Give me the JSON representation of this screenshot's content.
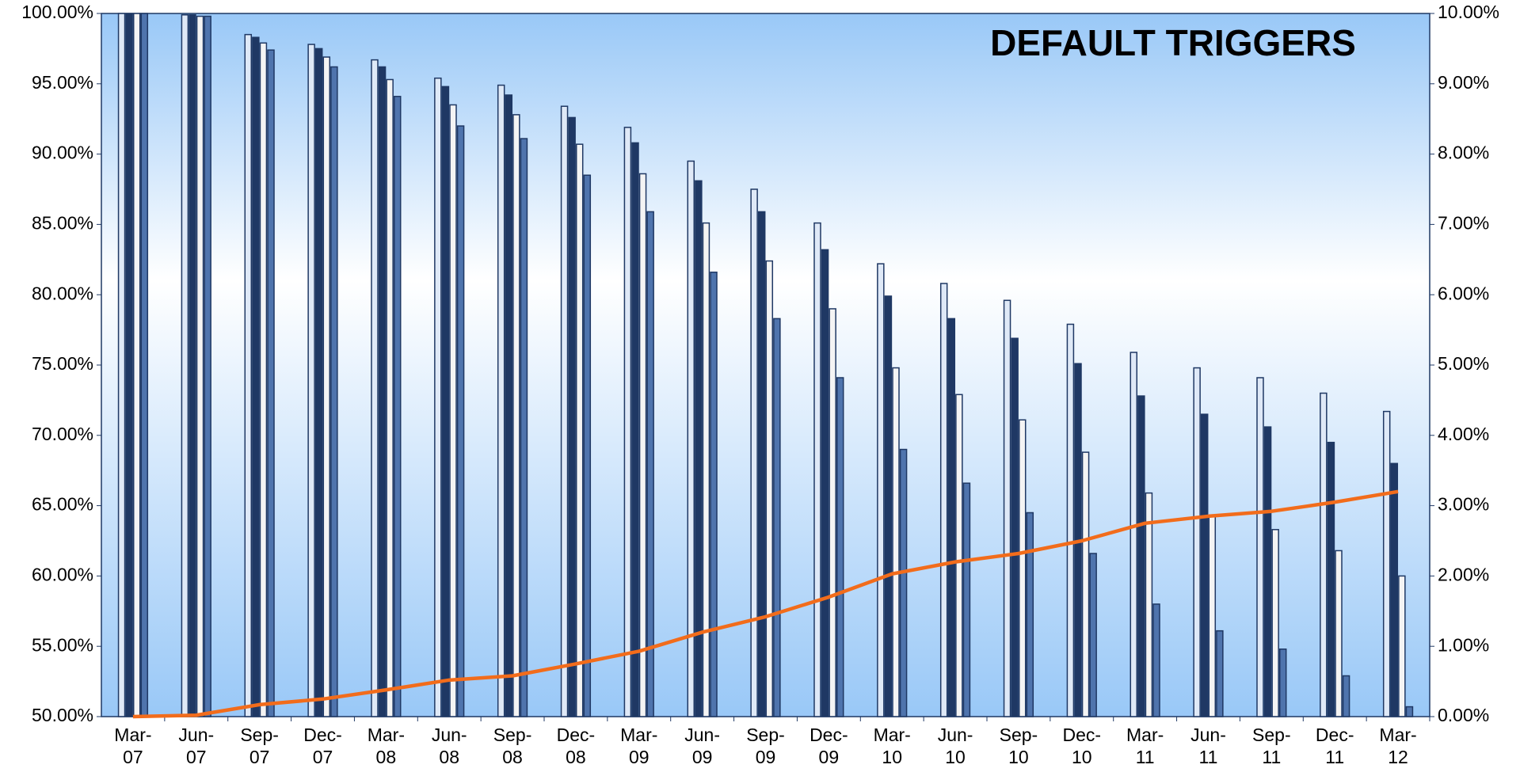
{
  "chart_data": {
    "type": "bar",
    "title": "DEFAULT TRIGGERS",
    "title_color": "#ff6600",
    "categories": [
      "Mar-07",
      "Jun-07",
      "Sep-07",
      "Dec-07",
      "Mar-08",
      "Jun-08",
      "Sep-08",
      "Dec-08",
      "Mar-09",
      "Jun-09",
      "Sep-09",
      "Dec-09",
      "Mar-10",
      "Jun-10",
      "Sep-10",
      "Dec-10",
      "Mar-11",
      "Jun-11",
      "Sep-11",
      "Dec-11",
      "Mar-12"
    ],
    "series": [
      {
        "color": "#dfe9f7",
        "values": [
          100,
          99.9,
          98.5,
          97.8,
          96.7,
          95.4,
          94.9,
          93.4,
          91.9,
          89.5,
          87.5,
          85.1,
          82.2,
          80.8,
          79.6,
          77.9,
          75.9,
          74.8,
          74.1,
          73.0,
          71.7
        ]
      },
      {
        "color": "#1f3864",
        "values": [
          100,
          99.9,
          98.3,
          97.5,
          96.2,
          94.8,
          94.2,
          92.6,
          90.8,
          88.1,
          85.9,
          83.2,
          79.9,
          78.3,
          76.9,
          75.1,
          72.8,
          71.5,
          70.6,
          69.5,
          68.0
        ]
      },
      {
        "color": "#f4f4f4",
        "values": [
          100,
          99.8,
          97.9,
          96.9,
          95.3,
          93.5,
          92.8,
          90.7,
          88.6,
          85.1,
          82.4,
          79.0,
          74.8,
          72.9,
          71.1,
          68.8,
          65.9,
          64.3,
          63.3,
          61.8,
          60.0
        ]
      },
      {
        "color": "#4f74ad",
        "values": [
          100,
          99.8,
          97.4,
          96.2,
          94.1,
          92.0,
          91.1,
          88.5,
          85.9,
          81.6,
          78.3,
          74.1,
          69.0,
          66.6,
          64.5,
          61.6,
          58.0,
          56.1,
          54.8,
          52.9,
          50.7
        ]
      },
      {
        "type": "line",
        "axis": "y2",
        "color": "#f26c1b",
        "values": [
          0,
          0.02,
          0.17,
          0.25,
          0.38,
          0.52,
          0.58,
          0.75,
          0.93,
          1.2,
          1.42,
          1.7,
          2.03,
          2.2,
          2.32,
          2.5,
          2.75,
          2.85,
          2.92,
          3.05,
          3.2
        ]
      }
    ],
    "ylim": [
      50,
      100
    ],
    "yticks": [
      {
        "value": 50,
        "label": "50.00%"
      },
      {
        "value": 55,
        "label": "55.00%"
      },
      {
        "value": 60,
        "label": "60.00%"
      },
      {
        "value": 65,
        "label": "65.00%"
      },
      {
        "value": 70,
        "label": "70.00%"
      },
      {
        "value": 75,
        "label": "75.00%"
      },
      {
        "value": 80,
        "label": "80.00%"
      },
      {
        "value": 85,
        "label": "85.00%"
      },
      {
        "value": 90,
        "label": "90.00%"
      },
      {
        "value": 95,
        "label": "95.00%"
      },
      {
        "value": 100,
        "label": "100.00%"
      }
    ],
    "y2lim": [
      0,
      10
    ],
    "y2ticks": [
      {
        "value": 0,
        "label": "0.00%"
      },
      {
        "value": 1,
        "label": "1.00%"
      },
      {
        "value": 2,
        "label": "2.00%"
      },
      {
        "value": 3,
        "label": "3.00%"
      },
      {
        "value": 4,
        "label": "4.00%"
      },
      {
        "value": 5,
        "label": "5.00%"
      },
      {
        "value": 6,
        "label": "6.00%"
      },
      {
        "value": 7,
        "label": "7.00%"
      },
      {
        "value": 8,
        "label": "8.00%"
      },
      {
        "value": 9,
        "label": "9.00%"
      },
      {
        "value": 10,
        "label": "10.00%"
      }
    ],
    "grid": false
  }
}
